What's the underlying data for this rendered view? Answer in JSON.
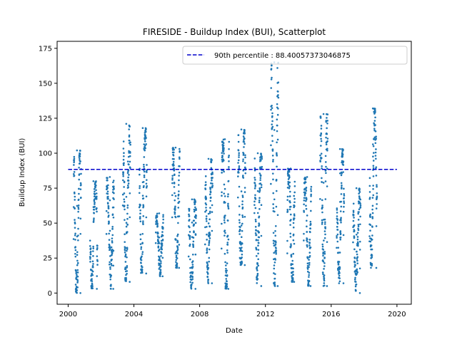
{
  "chart_data": {
    "type": "scatter",
    "title": "FIRESIDE - Buildup Index (BUI), Scatterplot",
    "xlabel": "Date",
    "ylabel": "Buildup Index (BUI)",
    "xlim": [
      "1999-05-01",
      "2020-11-15"
    ],
    "ylim": [
      -8,
      180
    ],
    "x_ticks": [
      "2000",
      "2004",
      "2008",
      "2012",
      "2016",
      "2020"
    ],
    "y_ticks": [
      0,
      25,
      50,
      75,
      100,
      125,
      150,
      175
    ],
    "grid": false,
    "legend": {
      "placement": "top-right"
    },
    "reference_line": {
      "label": "90th percentile : 88.40057373046875",
      "value": 88.40057373046875,
      "x_start": "2000-01-01",
      "x_end": "2020-01-01",
      "color": "#0000cc",
      "style": "dashed"
    },
    "series": [
      {
        "marker_color": "#1f77b4",
        "seasons": [
          {
            "start": "2000-05-01",
            "end": "2000-10-15",
            "min": 0,
            "max": 102
          },
          {
            "start": "2001-05-01",
            "end": "2001-10-15",
            "min": 3,
            "max": 80
          },
          {
            "start": "2002-05-01",
            "end": "2002-10-15",
            "min": 3,
            "max": 83
          },
          {
            "start": "2003-05-01",
            "end": "2003-10-15",
            "min": 8,
            "max": 121
          },
          {
            "start": "2004-05-01",
            "end": "2004-10-15",
            "min": 14,
            "max": 118
          },
          {
            "start": "2005-05-01",
            "end": "2005-10-15",
            "min": 12,
            "max": 57
          },
          {
            "start": "2006-05-01",
            "end": "2006-10-15",
            "min": 18,
            "max": 104
          },
          {
            "start": "2007-05-01",
            "end": "2007-10-15",
            "min": 3,
            "max": 67
          },
          {
            "start": "2008-05-01",
            "end": "2008-10-15",
            "min": 7,
            "max": 96
          },
          {
            "start": "2009-05-01",
            "end": "2009-10-15",
            "min": 3,
            "max": 110
          },
          {
            "start": "2010-05-01",
            "end": "2010-10-15",
            "min": 20,
            "max": 117
          },
          {
            "start": "2011-05-01",
            "end": "2011-10-15",
            "min": 5,
            "max": 100
          },
          {
            "start": "2012-05-01",
            "end": "2012-10-15",
            "min": 5,
            "max": 165
          },
          {
            "start": "2013-05-01",
            "end": "2013-10-15",
            "min": 8,
            "max": 89
          },
          {
            "start": "2014-05-01",
            "end": "2014-10-15",
            "min": 5,
            "max": 83
          },
          {
            "start": "2015-05-01",
            "end": "2015-10-15",
            "min": 5,
            "max": 128
          },
          {
            "start": "2016-05-01",
            "end": "2016-10-15",
            "min": 7,
            "max": 103
          },
          {
            "start": "2017-05-01",
            "end": "2017-10-15",
            "min": 0,
            "max": 75
          },
          {
            "start": "2018-05-01",
            "end": "2018-10-15",
            "min": 18,
            "max": 132
          }
        ]
      }
    ]
  }
}
